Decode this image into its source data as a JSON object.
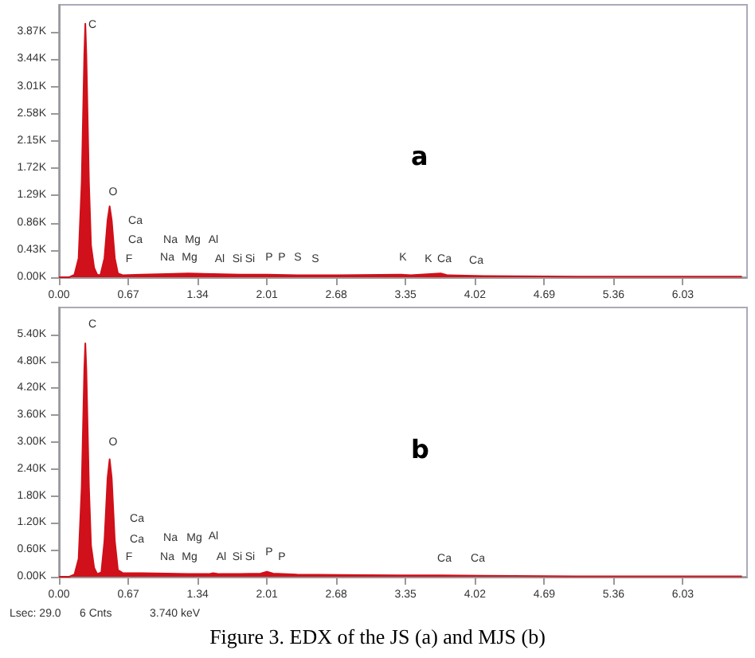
{
  "chart_data": [
    {
      "type": "area",
      "subtitle": "a",
      "color": "#d0101a",
      "x": [
        0,
        0.1,
        0.15,
        0.19,
        0.22,
        0.245,
        0.255,
        0.265,
        0.29,
        0.31,
        0.34,
        0.37,
        0.4,
        0.44,
        0.47,
        0.49,
        0.51,
        0.54,
        0.57,
        0.62,
        0.8,
        1.04,
        1.25,
        1.49,
        1.75,
        2.01,
        2.3,
        2.7,
        3.31,
        3.4,
        3.69,
        3.76,
        4.1,
        5,
        6.6
      ],
      "values": [
        0,
        0,
        40,
        300,
        1500,
        3500,
        4000,
        3500,
        1500,
        500,
        150,
        40,
        30,
        300,
        900,
        1120,
        900,
        300,
        60,
        30,
        40,
        50,
        60,
        50,
        40,
        40,
        30,
        30,
        40,
        30,
        60,
        30,
        20,
        10,
        10
      ],
      "xlim": [
        0,
        6.65
      ],
      "xticks": [
        {
          "value": 0,
          "label": "0.00"
        },
        0.67,
        1.34,
        2.01,
        2.68,
        3.35,
        4.02,
        4.69,
        5.36,
        6.03
      ],
      "ylim": [
        0,
        4300
      ],
      "yticks": [
        {
          "value": 0,
          "label": "0.00K"
        },
        {
          "value": 430,
          "label": "0.43K"
        },
        {
          "value": 860,
          "label": "0.86K"
        },
        {
          "value": 1290,
          "label": "1.29K"
        },
        {
          "value": 1720,
          "label": "1.72K"
        },
        {
          "value": 2150,
          "label": "2.15K"
        },
        {
          "value": 2580,
          "label": "2.58K"
        },
        {
          "value": 3010,
          "label": "3.01K"
        },
        {
          "value": 3440,
          "label": "3.44K"
        },
        {
          "value": 3870,
          "label": "3.87K"
        }
      ],
      "grid": false,
      "annotations": [
        "C",
        "O",
        "Ca",
        "Ca",
        "F",
        "Na",
        "Mg",
        "Al",
        "Na",
        "Mg",
        "Al",
        "Si",
        "Si",
        "P",
        "P",
        "S",
        "S",
        "K",
        "K",
        "Ca",
        "Ca"
      ]
    },
    {
      "type": "area",
      "subtitle": "b",
      "title": "Figure 3. EDX of the JS (a) and MJS (b)",
      "color": "#d0101a",
      "x": [
        0,
        0.1,
        0.15,
        0.19,
        0.22,
        0.245,
        0.255,
        0.265,
        0.29,
        0.31,
        0.34,
        0.37,
        0.41,
        0.44,
        0.47,
        0.49,
        0.51,
        0.54,
        0.57,
        0.62,
        0.8,
        1.04,
        1.25,
        1.45,
        1.49,
        1.55,
        1.75,
        1.95,
        2.01,
        2.07,
        2.3,
        2.7,
        3.3,
        3.7,
        4.1,
        5,
        6.6
      ],
      "values": [
        0,
        0,
        50,
        400,
        2000,
        4600,
        5200,
        4600,
        2000,
        700,
        200,
        60,
        100,
        800,
        2200,
        2620,
        2200,
        800,
        150,
        80,
        80,
        70,
        60,
        60,
        80,
        60,
        60,
        70,
        110,
        70,
        50,
        40,
        30,
        30,
        20,
        10,
        10
      ],
      "xlim": [
        0,
        6.65
      ],
      "xticks": [
        {
          "value": 0,
          "label": "0.00"
        },
        0.67,
        1.34,
        2.01,
        2.68,
        3.35,
        4.02,
        4.69,
        5.36,
        6.03
      ],
      "ylim": [
        0,
        6000
      ],
      "yticks": [
        {
          "value": 0,
          "label": "0.00K"
        },
        {
          "value": 600,
          "label": "0.60K"
        },
        {
          "value": 1200,
          "label": "1.20K"
        },
        {
          "value": 1800,
          "label": "1.80K"
        },
        {
          "value": 2400,
          "label": "2.40K"
        },
        {
          "value": 3000,
          "label": "3.00K"
        },
        {
          "value": 3600,
          "label": "3.60K"
        },
        {
          "value": 4200,
          "label": "4.20K"
        },
        {
          "value": 4800,
          "label": "4.80K"
        },
        {
          "value": 5400,
          "label": "5.40K"
        }
      ],
      "grid": false,
      "annotations": [
        "C",
        "O",
        "Ca",
        "Ca",
        "F",
        "Na",
        "Mg",
        "Al",
        "Na",
        "Mg",
        "Al",
        "Si",
        "Si",
        "P",
        "P",
        "Ca",
        "Ca",
        "Lsec: 29.0",
        "6 Cnts",
        "3.740 keV"
      ]
    }
  ]
}
